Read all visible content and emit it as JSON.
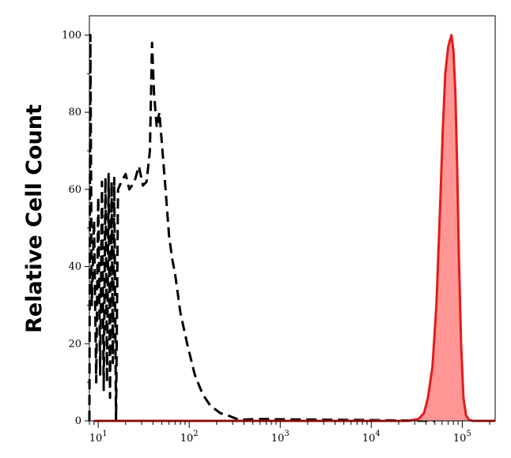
{
  "chart_data": {
    "type": "area",
    "title": "",
    "xlabel": "",
    "ylabel": "Relative Cell Count",
    "xscale": "log",
    "xlim": [
      8,
      230000
    ],
    "ylim": [
      0,
      105
    ],
    "grid": false,
    "x_ticks": [
      {
        "value": 10,
        "base": "10",
        "exp": "1"
      },
      {
        "value": 100,
        "base": "10",
        "exp": "2"
      },
      {
        "value": 1000,
        "base": "10",
        "exp": "3"
      },
      {
        "value": 10000,
        "base": "10",
        "exp": "4"
      },
      {
        "value": 100000,
        "base": "10",
        "exp": "5"
      }
    ],
    "y_ticks": [
      "0",
      "20",
      "40",
      "60",
      "80",
      "100"
    ],
    "series": [
      {
        "style": "dashed",
        "color": "#000000",
        "fill": "none",
        "points": [
          [
            8,
            0
          ],
          [
            8.2,
            100
          ],
          [
            8.5,
            30
          ],
          [
            9,
            52
          ],
          [
            9.5,
            10
          ],
          [
            10,
            58
          ],
          [
            10.5,
            12
          ],
          [
            11,
            62
          ],
          [
            11.5,
            8
          ],
          [
            12,
            63
          ],
          [
            12.5,
            10
          ],
          [
            13,
            64
          ],
          [
            13.5,
            6
          ],
          [
            14,
            62
          ],
          [
            14.5,
            15
          ],
          [
            15,
            63
          ],
          [
            15.7,
            0
          ],
          [
            16.5,
            60
          ],
          [
            18,
            62
          ],
          [
            20,
            64
          ],
          [
            22,
            60
          ],
          [
            25,
            62
          ],
          [
            28,
            66
          ],
          [
            31,
            61
          ],
          [
            34,
            62
          ],
          [
            37,
            70
          ],
          [
            39,
            98
          ],
          [
            41,
            85
          ],
          [
            44,
            76
          ],
          [
            47,
            80
          ],
          [
            50,
            72
          ],
          [
            55,
            60
          ],
          [
            60,
            48
          ],
          [
            65,
            42
          ],
          [
            70,
            38
          ],
          [
            80,
            28
          ],
          [
            95,
            20
          ],
          [
            115,
            12
          ],
          [
            140,
            7
          ],
          [
            170,
            4
          ],
          [
            220,
            2
          ],
          [
            280,
            1.2
          ],
          [
            350,
            0.3
          ],
          [
            600,
            0.5
          ],
          [
            1000,
            0.4
          ],
          [
            10000,
            0.2
          ],
          [
            50000,
            0
          ]
        ]
      },
      {
        "style": "solid",
        "color": "#e31c1c",
        "fill": "#ff9696",
        "points": [
          [
            9,
            0
          ],
          [
            25000,
            0
          ],
          [
            33000,
            0.5
          ],
          [
            38000,
            2
          ],
          [
            42000,
            6
          ],
          [
            47000,
            14
          ],
          [
            52000,
            30
          ],
          [
            57000,
            55
          ],
          [
            61000,
            75
          ],
          [
            65000,
            90
          ],
          [
            70000,
            97
          ],
          [
            76000,
            100
          ],
          [
            80000,
            96
          ],
          [
            84000,
            85
          ],
          [
            88000,
            65
          ],
          [
            92000,
            42
          ],
          [
            97000,
            20
          ],
          [
            103000,
            6
          ],
          [
            110000,
            1.5
          ],
          [
            118000,
            0.3
          ],
          [
            130000,
            0
          ],
          [
            230000,
            0
          ]
        ]
      }
    ]
  }
}
